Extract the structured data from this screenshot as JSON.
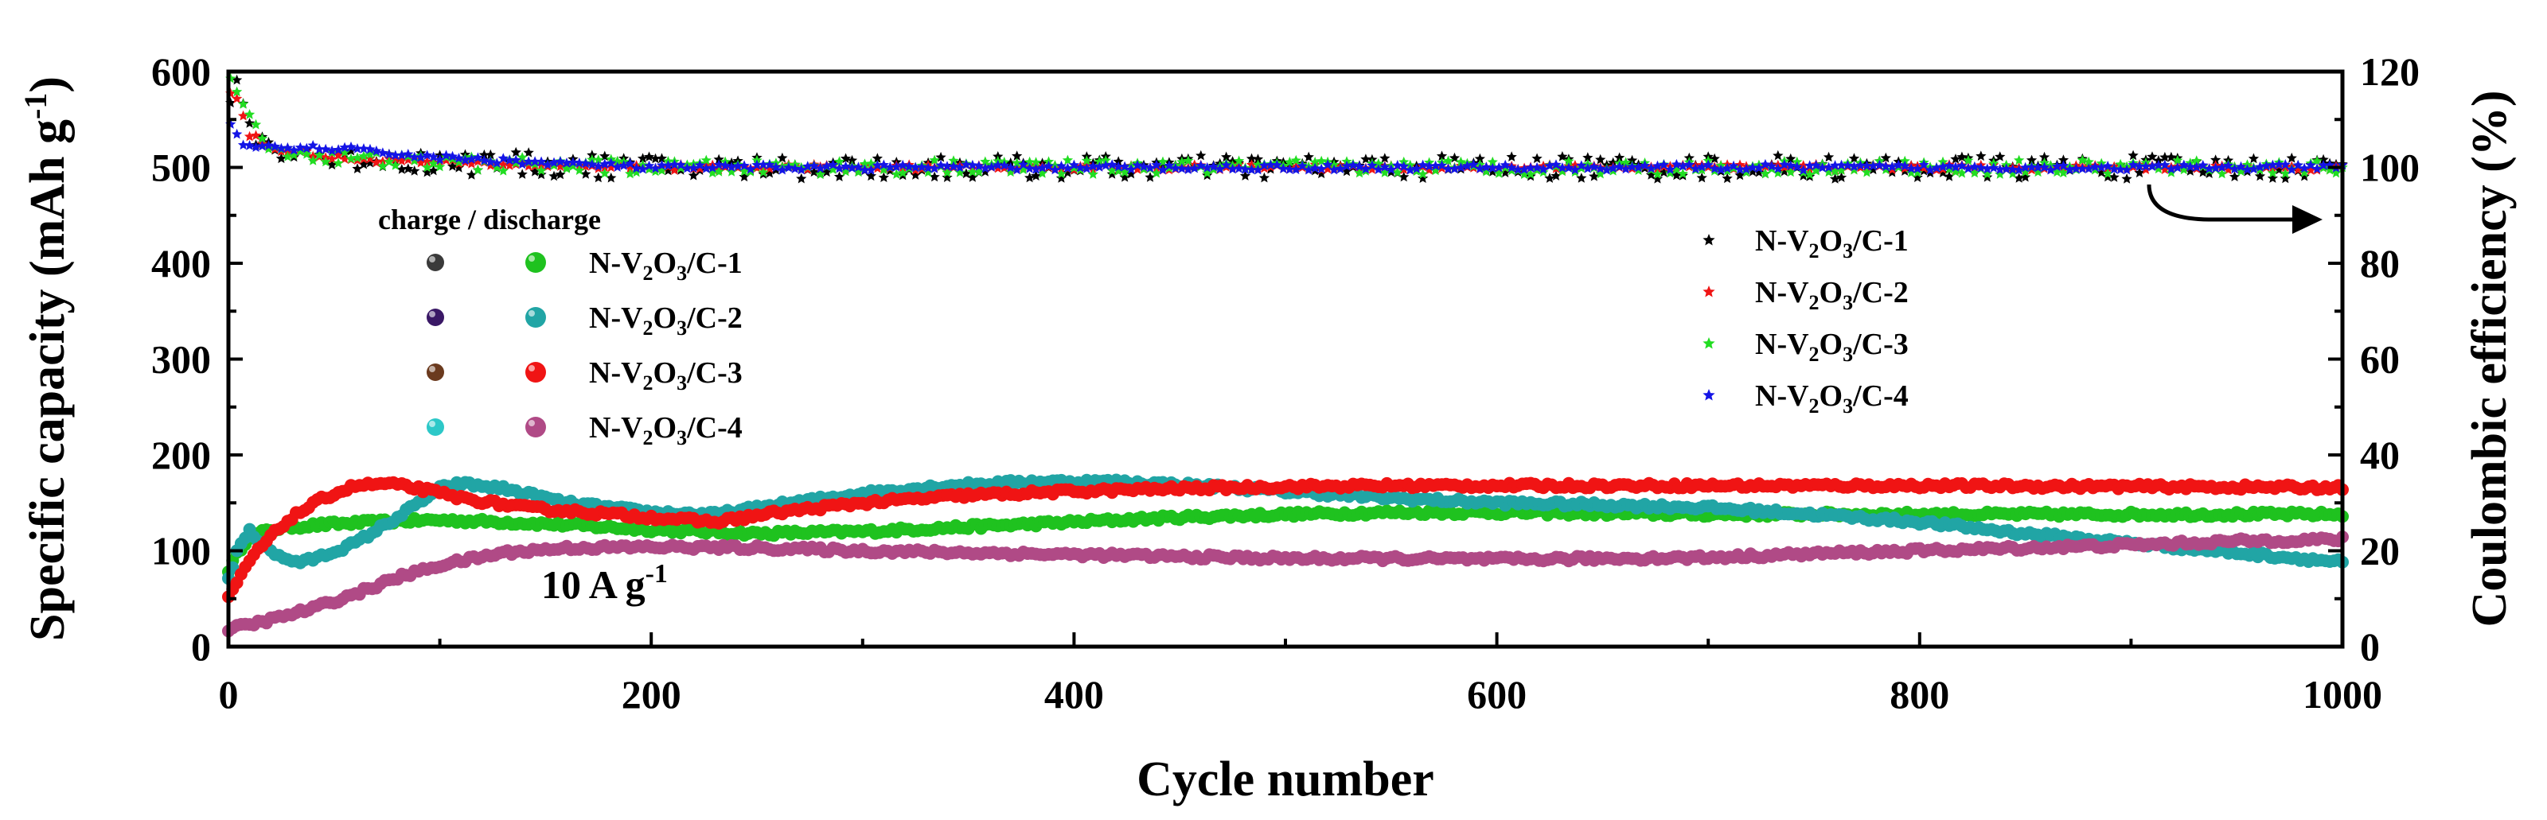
{
  "chart_data": {
    "type": "scatter",
    "xlabel": "Cycle number",
    "ylabel": {
      "main": "Specific capacity (mAh g",
      "sup": "-1",
      "tail": ")"
    },
    "y2label": "Coulombic efficiency (%)",
    "xlim": [
      0,
      1000
    ],
    "ylim": [
      0,
      600
    ],
    "y2lim": [
      0,
      120
    ],
    "xticks": [
      "0",
      "200",
      "400",
      "600",
      "800",
      "1000"
    ],
    "yticks": [
      "0",
      "100",
      "200",
      "300",
      "400",
      "500",
      "600"
    ],
    "y2ticks": [
      "0",
      "20",
      "40",
      "60",
      "80",
      "100",
      "120"
    ],
    "annotation": {
      "main": "10 A g",
      "sup": "-1"
    },
    "legend_capacity": {
      "header": "charge / discharge",
      "entries": [
        {
          "name": "N-V2O3/C-1",
          "charge_color": "#3a3a3a",
          "discharge_color": "#1fc21f"
        },
        {
          "name": "N-V2O3/C-2",
          "charge_color": "#3a1866",
          "discharge_color": "#21a5a5"
        },
        {
          "name": "N-V2O3/C-3",
          "charge_color": "#6b3a1e",
          "discharge_color": "#f01414"
        },
        {
          "name": "N-V2O3/C-4",
          "charge_color": "#2dc8c8",
          "discharge_color": "#b04a86"
        }
      ]
    },
    "legend_ce": {
      "entries": [
        {
          "name": "N-V2O3/C-1",
          "color": "#000000"
        },
        {
          "name": "N-V2O3/C-2",
          "color": "#f01414"
        },
        {
          "name": "N-V2O3/C-3",
          "color": "#22dd22"
        },
        {
          "name": "N-V2O3/C-4",
          "color": "#1414e6"
        }
      ]
    },
    "series_capacity": [
      {
        "name": "N-V2O3/C-1",
        "color": "#1fc21f",
        "points": [
          [
            0,
            80
          ],
          [
            5,
            100
          ],
          [
            10,
            115
          ],
          [
            20,
            122
          ],
          [
            30,
            125
          ],
          [
            50,
            128
          ],
          [
            80,
            131
          ],
          [
            100,
            132
          ],
          [
            130,
            130
          ],
          [
            160,
            127
          ],
          [
            200,
            122
          ],
          [
            250,
            118
          ],
          [
            300,
            120
          ],
          [
            350,
            125
          ],
          [
            400,
            130
          ],
          [
            450,
            135
          ],
          [
            500,
            138
          ],
          [
            550,
            140
          ],
          [
            600,
            140
          ],
          [
            650,
            139
          ],
          [
            700,
            138
          ],
          [
            750,
            138
          ],
          [
            800,
            138
          ],
          [
            850,
            138
          ],
          [
            900,
            138
          ],
          [
            950,
            138
          ],
          [
            1000,
            138
          ]
        ]
      },
      {
        "name": "N-V2O3/C-2",
        "color": "#21a5a5",
        "points": [
          [
            0,
            70
          ],
          [
            5,
            105
          ],
          [
            10,
            120
          ],
          [
            15,
            110
          ],
          [
            25,
            92
          ],
          [
            35,
            88
          ],
          [
            45,
            95
          ],
          [
            60,
            108
          ],
          [
            80,
            135
          ],
          [
            100,
            165
          ],
          [
            110,
            170
          ],
          [
            130,
            165
          ],
          [
            160,
            150
          ],
          [
            200,
            140
          ],
          [
            230,
            138
          ],
          [
            260,
            148
          ],
          [
            300,
            160
          ],
          [
            340,
            168
          ],
          [
            380,
            172
          ],
          [
            420,
            172
          ],
          [
            460,
            168
          ],
          [
            500,
            162
          ],
          [
            550,
            155
          ],
          [
            600,
            150
          ],
          [
            650,
            148
          ],
          [
            700,
            145
          ],
          [
            750,
            138
          ],
          [
            800,
            130
          ],
          [
            850,
            118
          ],
          [
            900,
            108
          ],
          [
            950,
            98
          ],
          [
            1000,
            88
          ]
        ]
      },
      {
        "name": "N-V2O3/C-3",
        "color": "#f01414",
        "points": [
          [
            0,
            50
          ],
          [
            5,
            70
          ],
          [
            10,
            90
          ],
          [
            20,
            115
          ],
          [
            30,
            135
          ],
          [
            45,
            155
          ],
          [
            60,
            168
          ],
          [
            75,
            170
          ],
          [
            90,
            165
          ],
          [
            110,
            155
          ],
          [
            140,
            145
          ],
          [
            170,
            140
          ],
          [
            200,
            135
          ],
          [
            230,
            130
          ],
          [
            260,
            140
          ],
          [
            300,
            150
          ],
          [
            350,
            158
          ],
          [
            400,
            162
          ],
          [
            450,
            165
          ],
          [
            500,
            167
          ],
          [
            550,
            168
          ],
          [
            600,
            168
          ],
          [
            700,
            168
          ],
          [
            800,
            168
          ],
          [
            900,
            167
          ],
          [
            1000,
            166
          ]
        ]
      },
      {
        "name": "N-V2O3/C-4",
        "color": "#b04a86",
        "points": [
          [
            0,
            18
          ],
          [
            20,
            28
          ],
          [
            40,
            40
          ],
          [
            60,
            55
          ],
          [
            80,
            72
          ],
          [
            100,
            85
          ],
          [
            130,
            98
          ],
          [
            160,
            103
          ],
          [
            200,
            104
          ],
          [
            250,
            103
          ],
          [
            300,
            100
          ],
          [
            350,
            98
          ],
          [
            400,
            96
          ],
          [
            450,
            94
          ],
          [
            500,
            92
          ],
          [
            550,
            92
          ],
          [
            600,
            91
          ],
          [
            650,
            92
          ],
          [
            700,
            93
          ],
          [
            750,
            97
          ],
          [
            800,
            100
          ],
          [
            850,
            103
          ],
          [
            900,
            106
          ],
          [
            950,
            110
          ],
          [
            1000,
            112
          ]
        ]
      }
    ],
    "series_ce": [
      {
        "name": "N-V2O3/C-1",
        "color": "#000000",
        "points": [
          [
            0,
            112
          ],
          [
            5,
            117
          ],
          [
            10,
            108
          ],
          [
            20,
            104
          ],
          [
            50,
            102
          ],
          [
            100,
            101
          ],
          [
            200,
            100
          ],
          [
            400,
            100
          ],
          [
            600,
            100
          ],
          [
            800,
            100
          ],
          [
            1000,
            100
          ]
        ]
      },
      {
        "name": "N-V2O3/C-2",
        "color": "#f01414",
        "points": [
          [
            0,
            116
          ],
          [
            5,
            114
          ],
          [
            10,
            107
          ],
          [
            20,
            104
          ],
          [
            50,
            102
          ],
          [
            100,
            101
          ],
          [
            200,
            100
          ],
          [
            400,
            100
          ],
          [
            600,
            100
          ],
          [
            800,
            100
          ],
          [
            1000,
            100
          ]
        ]
      },
      {
        "name": "N-V2O3/C-3",
        "color": "#22dd22",
        "points": [
          [
            0,
            118
          ],
          [
            5,
            116
          ],
          [
            10,
            110
          ],
          [
            20,
            104
          ],
          [
            50,
            102
          ],
          [
            100,
            101
          ],
          [
            200,
            100
          ],
          [
            400,
            100
          ],
          [
            600,
            100
          ],
          [
            800,
            100
          ],
          [
            1000,
            100
          ]
        ]
      },
      {
        "name": "N-V2O3/C-4",
        "color": "#1414e6",
        "points": [
          [
            0,
            110
          ],
          [
            5,
            106
          ],
          [
            10,
            104
          ],
          [
            20,
            104
          ],
          [
            50,
            104
          ],
          [
            100,
            102
          ],
          [
            200,
            100
          ],
          [
            400,
            100
          ],
          [
            600,
            100
          ],
          [
            800,
            100
          ],
          [
            1000,
            100
          ]
        ]
      }
    ]
  }
}
